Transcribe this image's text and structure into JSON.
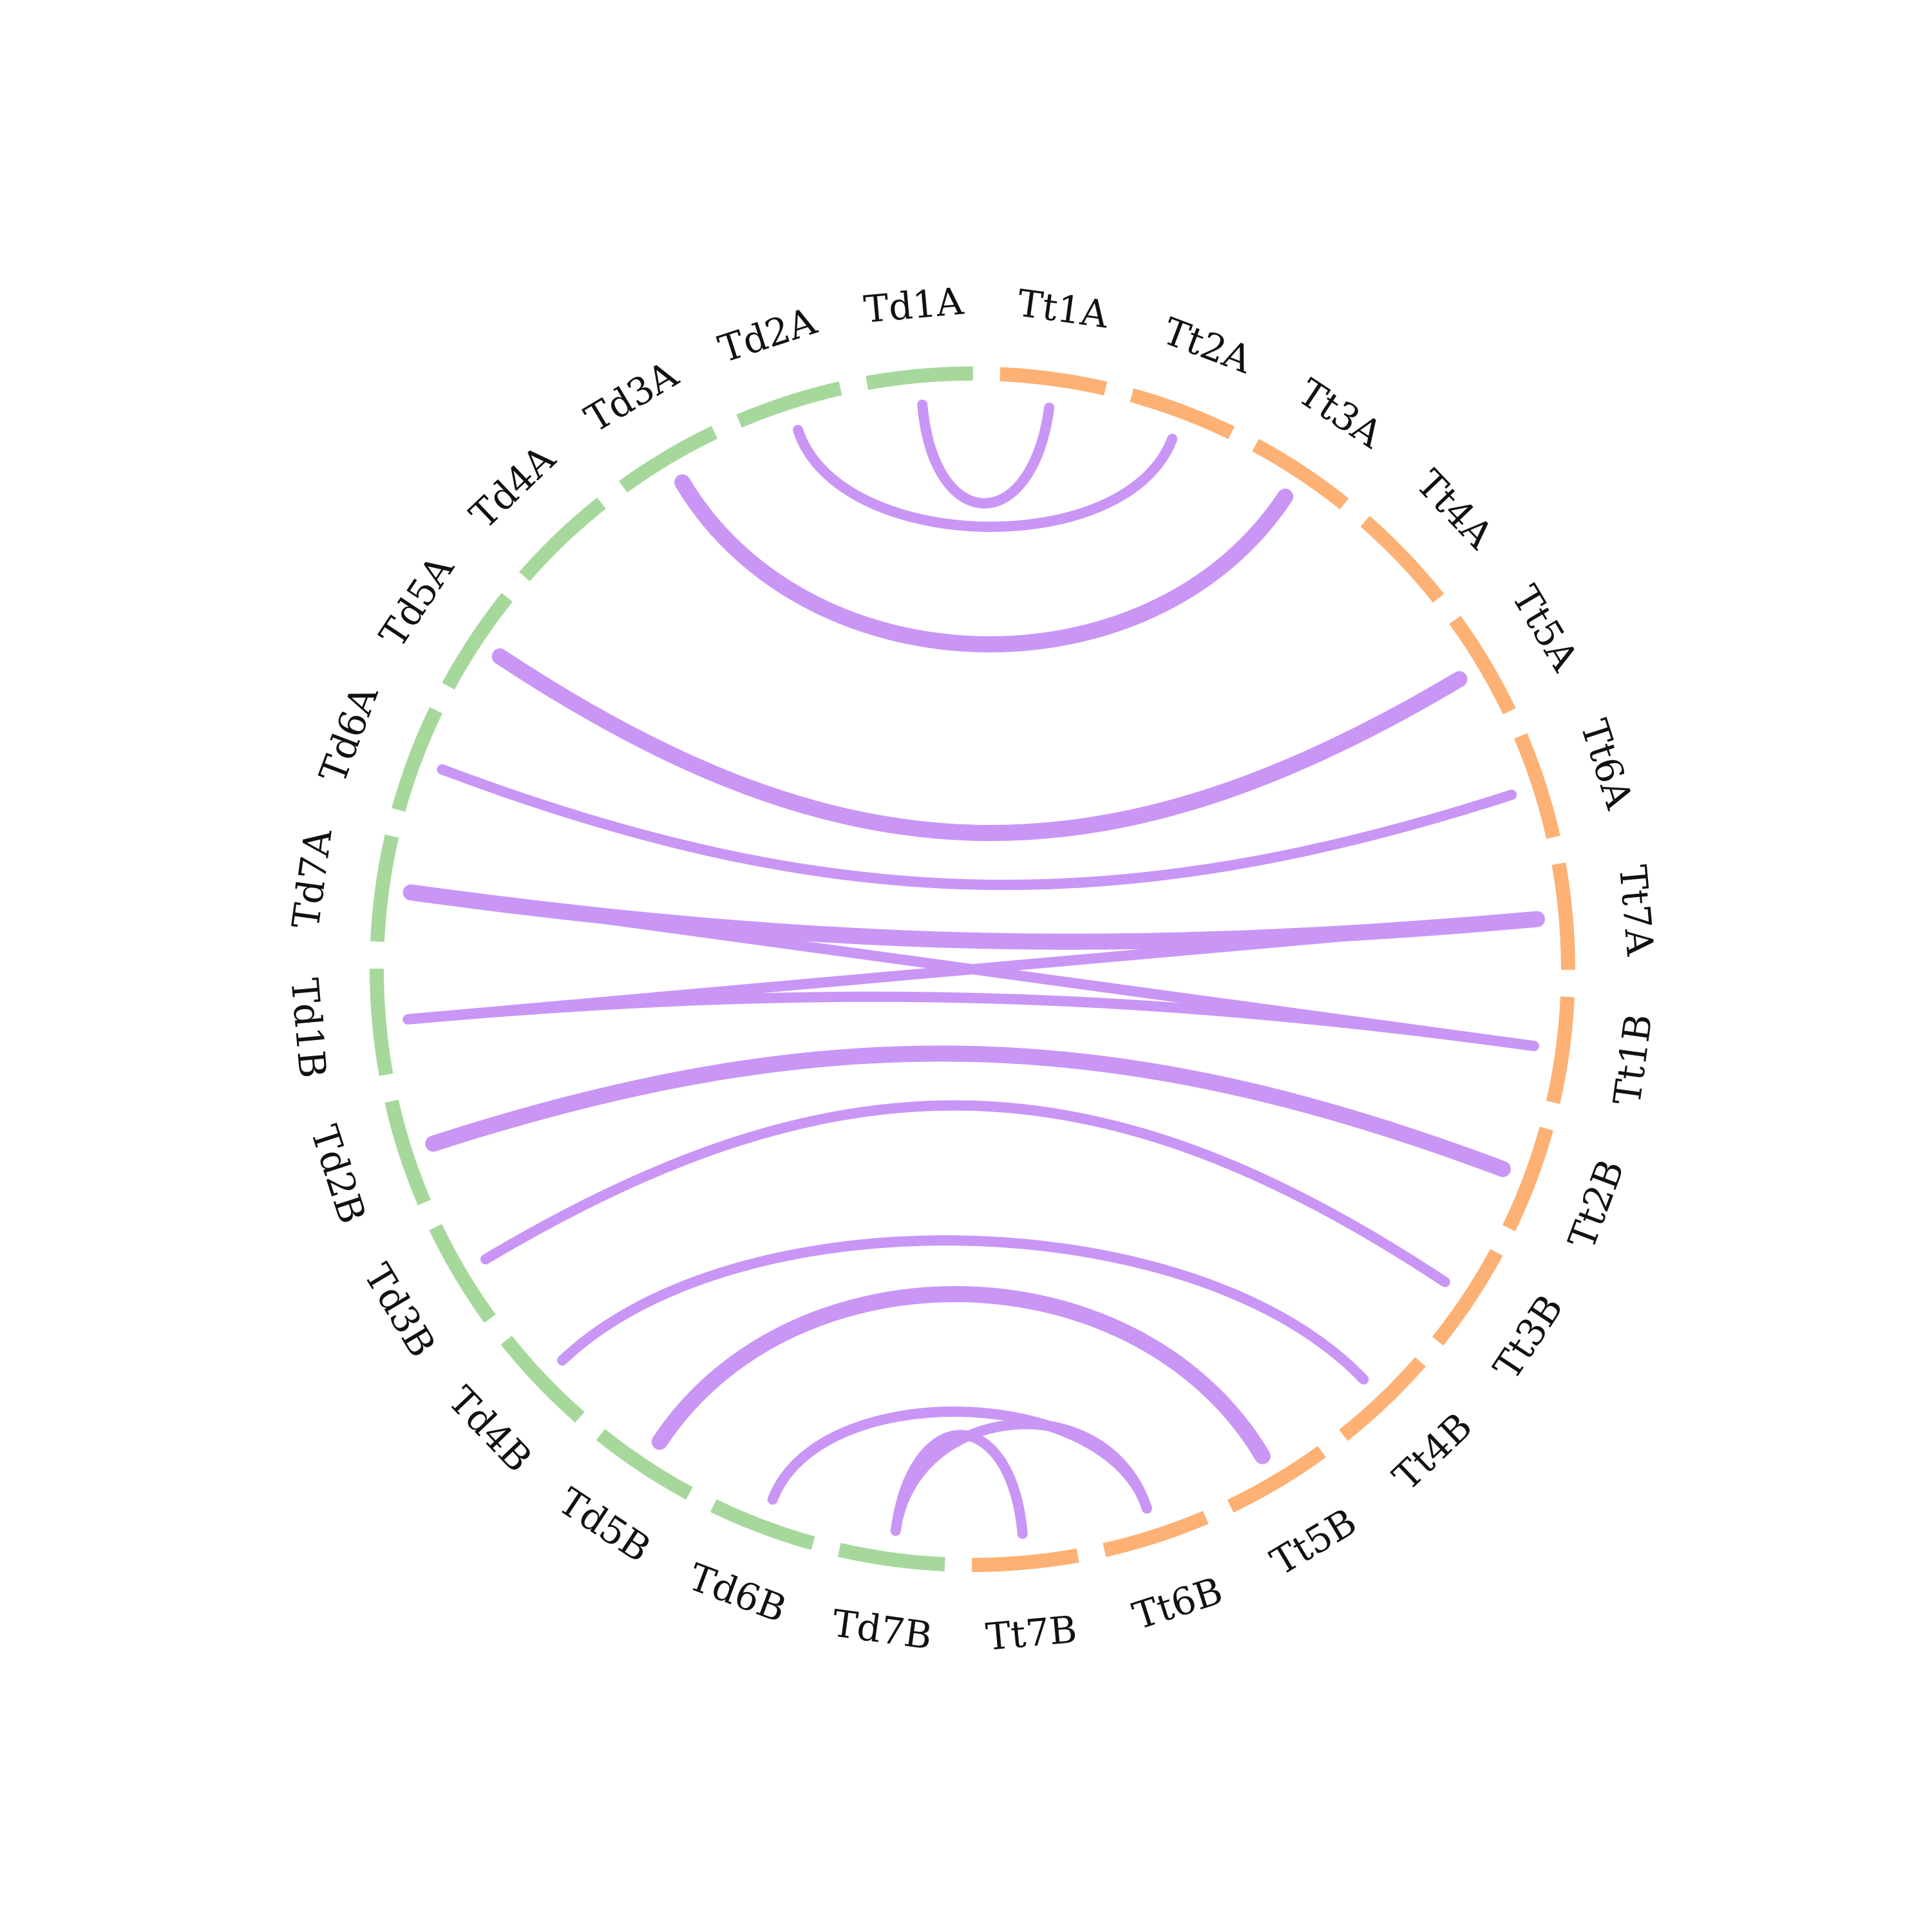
{
  "colors": {
    "group_td": "#a6d89c",
    "group_tt": "#fdb174",
    "link": "#c996f5",
    "label": "#111111"
  },
  "chromosomes": [
    {
      "id": "Td1A",
      "group": "td"
    },
    {
      "id": "Tt1A",
      "group": "tt"
    },
    {
      "id": "Tt2A",
      "group": "tt"
    },
    {
      "id": "Tt3A",
      "group": "tt"
    },
    {
      "id": "Tt4A",
      "group": "tt"
    },
    {
      "id": "Tt5A",
      "group": "tt"
    },
    {
      "id": "Tt6A",
      "group": "tt"
    },
    {
      "id": "Tt7A",
      "group": "tt"
    },
    {
      "id": "Tt1B",
      "group": "tt"
    },
    {
      "id": "Tt2B",
      "group": "tt"
    },
    {
      "id": "Tt3B",
      "group": "tt"
    },
    {
      "id": "Tt4B",
      "group": "tt"
    },
    {
      "id": "Tt5B",
      "group": "tt"
    },
    {
      "id": "Tt6B",
      "group": "tt"
    },
    {
      "id": "Tt7B",
      "group": "tt"
    },
    {
      "id": "Td7B",
      "group": "td"
    },
    {
      "id": "Td6B",
      "group": "td"
    },
    {
      "id": "Td5B",
      "group": "td"
    },
    {
      "id": "Td4B",
      "group": "td"
    },
    {
      "id": "Td3B",
      "group": "td"
    },
    {
      "id": "Td2B",
      "group": "td"
    },
    {
      "id": "Td1B",
      "group": "td"
    },
    {
      "id": "Td7A",
      "group": "td"
    },
    {
      "id": "Td6A",
      "group": "td"
    },
    {
      "id": "Td5A",
      "group": "td"
    },
    {
      "id": "Td4A",
      "group": "td"
    },
    {
      "id": "Td3A",
      "group": "td"
    },
    {
      "id": "Td2A",
      "group": "td"
    }
  ],
  "links": [
    {
      "from": "Td1A",
      "to": "Tt1A",
      "weight": 1
    },
    {
      "from": "Td2A",
      "to": "Tt2A",
      "weight": 1
    },
    {
      "from": "Td3A",
      "to": "Tt3A",
      "weight": 2
    },
    {
      "from": "Td5A",
      "to": "Tt5A",
      "weight": 2
    },
    {
      "from": "Td6A",
      "to": "Tt6A",
      "weight": 1
    },
    {
      "from": "Td7A",
      "to": "Tt1B",
      "weight": 1
    },
    {
      "from": "Td7A",
      "to": "Tt7A",
      "weight": 2
    },
    {
      "from": "Td1B",
      "to": "Tt1B",
      "weight": 1
    },
    {
      "from": "Td1B",
      "to": "Tt7A",
      "weight": 1
    },
    {
      "from": "Td2B",
      "to": "Tt2B",
      "weight": 2
    },
    {
      "from": "Td3B",
      "to": "Tt3B",
      "weight": 1
    },
    {
      "from": "Td4B",
      "to": "Tt4B",
      "weight": 1
    },
    {
      "from": "Td5B",
      "to": "Tt5B",
      "weight": 2
    },
    {
      "from": "Td6B",
      "to": "Tt6B",
      "weight": 1
    },
    {
      "from": "Td7B",
      "to": "Tt7B",
      "weight": 1
    },
    {
      "from": "Td7B",
      "to": "Tt6B",
      "weight": 1
    }
  ]
}
